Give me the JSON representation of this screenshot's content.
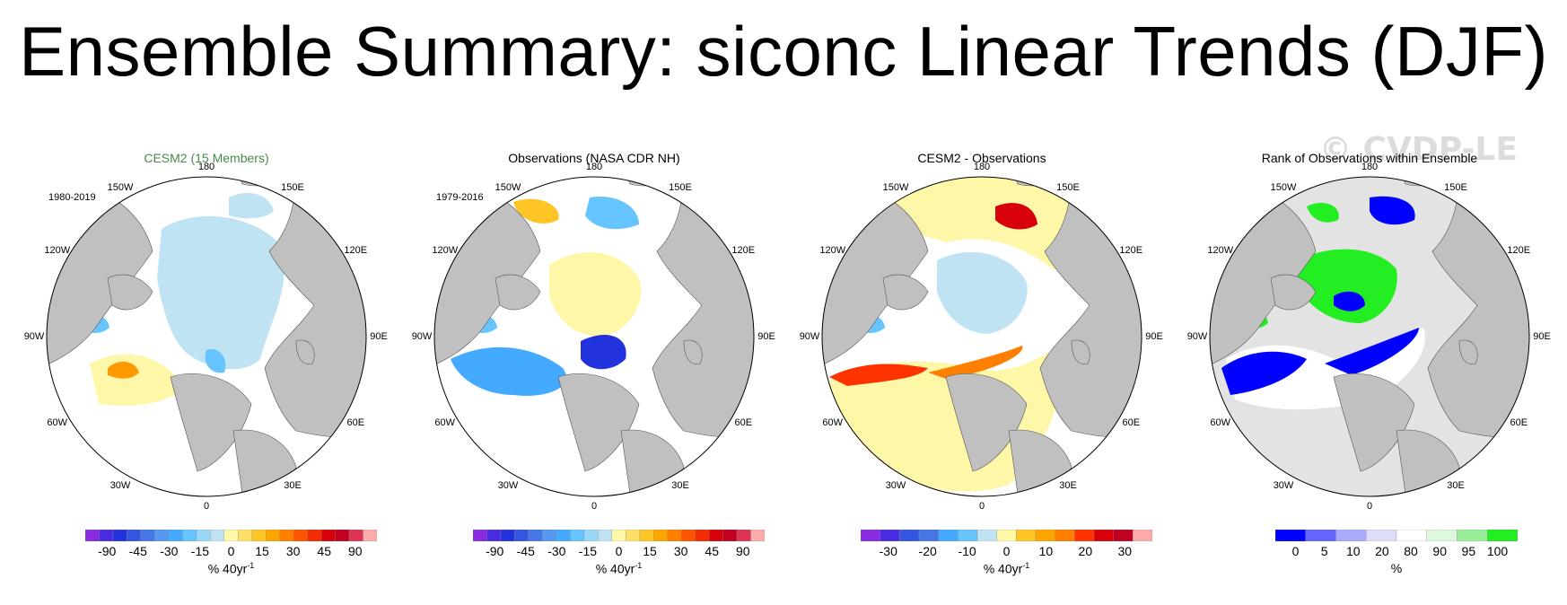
{
  "title": "Ensemble Summary: siconc Linear Trends (DJF)",
  "watermark": "© CVDP-LE",
  "lon_labels": [
    "180",
    "150E",
    "120E",
    "90E",
    "60E",
    "30E",
    "0",
    "30W",
    "60W",
    "90W",
    "120W",
    "150W"
  ],
  "panels": [
    {
      "title": "CESM2 (15 Members)",
      "title_color": "#4a8a4a",
      "period": "1980-2019",
      "units": "% 40yr",
      "units_sup": "-1",
      "cbar_labels": [
        "-90",
        "-45",
        "-30",
        "-15",
        "0",
        "15",
        "30",
        "45",
        "90"
      ],
      "cbar_colors": [
        "#8a2be2",
        "#4b2be2",
        "#2233dd",
        "#3355e0",
        "#4477e5",
        "#5599ee",
        "#44aaff",
        "#66c4ff",
        "#99d6f7",
        "#bfe3f3",
        "#fff7a8",
        "#ffe066",
        "#ffc425",
        "#ffa500",
        "#ff7f00",
        "#ff5500",
        "#f02c00",
        "#d8000a",
        "#c00020",
        "#dd3355",
        "#ffaaaa"
      ]
    },
    {
      "title": "Observations (NASA CDR NH)",
      "title_color": "#000000",
      "period": "1979-2016",
      "units": "% 40yr",
      "units_sup": "-1",
      "cbar_labels": [
        "-90",
        "-45",
        "-30",
        "-15",
        "0",
        "15",
        "30",
        "45",
        "90"
      ],
      "cbar_colors": [
        "#8a2be2",
        "#4b2be2",
        "#2233dd",
        "#3355e0",
        "#4477e5",
        "#5599ee",
        "#44aaff",
        "#66c4ff",
        "#99d6f7",
        "#bfe3f3",
        "#fff7a8",
        "#ffe066",
        "#ffc425",
        "#ffa500",
        "#ff7f00",
        "#ff5500",
        "#f02c00",
        "#d8000a",
        "#c00020",
        "#dd3355",
        "#ffaaaa"
      ]
    },
    {
      "title": "CESM2 - Observations",
      "title_color": "#000000",
      "period": "",
      "units": "% 40yr",
      "units_sup": "-1",
      "cbar_labels": [
        "-30",
        "-20",
        "-10",
        "0",
        "10",
        "20",
        "30"
      ],
      "cbar_colors": [
        "#8a2be2",
        "#4b2be2",
        "#3355e0",
        "#4477e5",
        "#44aaff",
        "#66c4ff",
        "#bfe3f3",
        "#fff7a8",
        "#ffc425",
        "#ffa500",
        "#ff7f00",
        "#ff3300",
        "#d8000a",
        "#c00020",
        "#ffaaaa"
      ]
    },
    {
      "title": "Rank of Observations within Ensemble",
      "title_color": "#000000",
      "period": "",
      "units": "%",
      "units_sup": "",
      "cbar_labels": [
        "0",
        "5",
        "10",
        "20",
        "80",
        "90",
        "95",
        "100"
      ],
      "cbar_colors": [
        "#0000ff",
        "#6666ff",
        "#aaaaff",
        "#ddddfa",
        "#ffffff",
        "#ddf8dd",
        "#99ee99",
        "#22ee22"
      ]
    }
  ],
  "chart_data": [
    {
      "type": "heatmap",
      "title": "CESM2 (15 Members)",
      "subtitle": "1980-2019",
      "projection": "north polar stereographic",
      "variable": "siconc linear trend",
      "units": "% 40yr-1",
      "colorbar_ticks": [
        -90,
        -45,
        -30,
        -15,
        0,
        15,
        30,
        45,
        90
      ]
    },
    {
      "type": "heatmap",
      "title": "Observations (NASA CDR NH)",
      "subtitle": "1979-2016",
      "projection": "north polar stereographic",
      "variable": "siconc linear trend",
      "units": "% 40yr-1",
      "colorbar_ticks": [
        -90,
        -45,
        -30,
        -15,
        0,
        15,
        30,
        45,
        90
      ]
    },
    {
      "type": "heatmap",
      "title": "CESM2 - Observations",
      "projection": "north polar stereographic",
      "variable": "siconc trend difference",
      "units": "% 40yr-1",
      "colorbar_ticks": [
        -30,
        -20,
        -10,
        0,
        10,
        20,
        30
      ]
    },
    {
      "type": "heatmap",
      "title": "Rank of Observations within Ensemble",
      "projection": "north polar stereographic",
      "variable": "rank",
      "units": "%",
      "colorbar_ticks": [
        0,
        5,
        10,
        20,
        80,
        90,
        95,
        100
      ]
    }
  ]
}
